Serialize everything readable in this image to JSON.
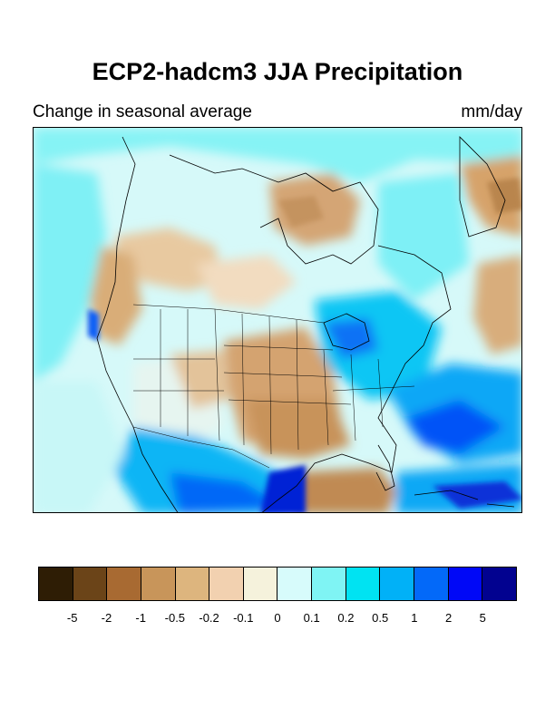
{
  "title": "ECP2-hadcm3 JJA Precipitation",
  "subtitle_left": "Change in seasonal average",
  "subtitle_right": "mm/day",
  "colorbar": {
    "colors": [
      "#2e1d05",
      "#6b4418",
      "#a86a32",
      "#c8955a",
      "#ddb57e",
      "#f2d1b0",
      "#f5f2dc",
      "#d7fbfb",
      "#7ff4f4",
      "#00e3f2",
      "#01b1f7",
      "#0369f9",
      "#0008f7",
      "#020290"
    ],
    "labels": [
      "-5",
      "-2",
      "-1",
      "-0.5",
      "-0.2",
      "-0.1",
      "0",
      "0.1",
      "0.2",
      "0.5",
      "1",
      "2",
      "5"
    ]
  },
  "map": {
    "field": "JJA precipitation change",
    "units": "mm/day",
    "projection": "lambert-conformal",
    "region": "North America"
  }
}
